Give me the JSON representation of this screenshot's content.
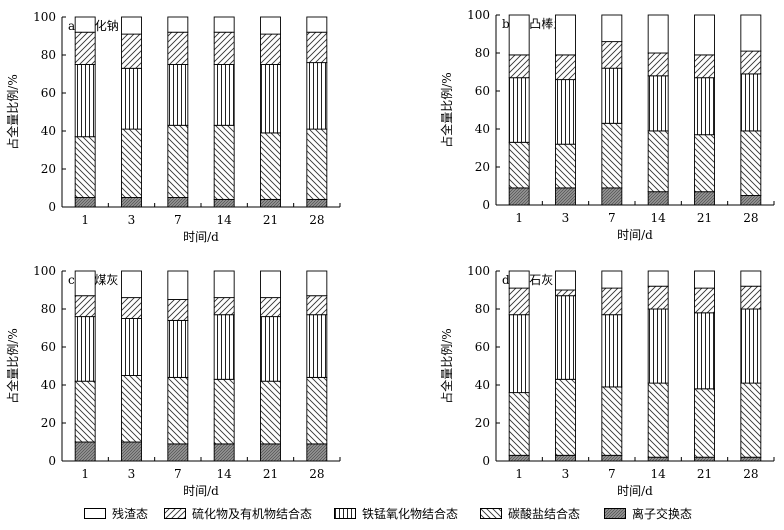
{
  "chart_data": [
    {
      "type": "bar",
      "stacked": true,
      "panel_label": "a. 硫化钠",
      "xlabel": "时间/d",
      "ylabel": "占全量比例/%",
      "ylim": [
        0,
        100
      ],
      "yticks": [
        0,
        20,
        40,
        60,
        80,
        100
      ],
      "categories": [
        "1",
        "3",
        "7",
        "14",
        "21",
        "28"
      ],
      "series": [
        {
          "name": "离子交换态",
          "values": [
            5,
            5,
            5,
            4,
            4,
            4
          ]
        },
        {
          "name": "碳酸盐结合态",
          "values": [
            32,
            36,
            38,
            39,
            35,
            37
          ]
        },
        {
          "name": "铁锰氧化物结合态",
          "values": [
            38,
            32,
            32,
            32,
            36,
            35
          ]
        },
        {
          "name": "硫化物及有机物结合态",
          "values": [
            17,
            18,
            17,
            17,
            16,
            16
          ]
        },
        {
          "name": "残渣态",
          "values": [
            8,
            9,
            8,
            8,
            9,
            8
          ]
        }
      ]
    },
    {
      "type": "bar",
      "stacked": true,
      "panel_label": "b. 凹凸棒土",
      "xlabel": "时间/d",
      "ylabel": "占全量比例/%",
      "ylim": [
        0,
        100
      ],
      "yticks": [
        0,
        20,
        40,
        60,
        80,
        100
      ],
      "categories": [
        "1",
        "3",
        "7",
        "14",
        "21",
        "28"
      ],
      "series": [
        {
          "name": "离子交换态",
          "values": [
            9,
            9,
            9,
            7,
            7,
            5
          ]
        },
        {
          "name": "碳酸盐结合态",
          "values": [
            24,
            23,
            34,
            32,
            30,
            34
          ]
        },
        {
          "name": "铁锰氧化物结合态",
          "values": [
            34,
            34,
            29,
            29,
            30,
            30
          ]
        },
        {
          "name": "硫化物及有机物结合态",
          "values": [
            12,
            13,
            14,
            12,
            12,
            12
          ]
        },
        {
          "name": "残渣态",
          "values": [
            21,
            21,
            14,
            20,
            21,
            19
          ]
        }
      ]
    },
    {
      "type": "bar",
      "stacked": true,
      "panel_label": "c. 粉煤灰",
      "xlabel": "时间/d",
      "ylabel": "占全量比例/%",
      "ylim": [
        0,
        100
      ],
      "yticks": [
        0,
        20,
        40,
        60,
        80,
        100
      ],
      "categories": [
        "1",
        "3",
        "7",
        "14",
        "21",
        "28"
      ],
      "series": [
        {
          "name": "离子交换态",
          "values": [
            10,
            10,
            9,
            9,
            9,
            9
          ]
        },
        {
          "name": "碳酸盐结合态",
          "values": [
            32,
            35,
            35,
            34,
            33,
            35
          ]
        },
        {
          "name": "铁锰氧化物结合态",
          "values": [
            34,
            30,
            30,
            34,
            34,
            33
          ]
        },
        {
          "name": "硫化物及有机物结合态",
          "values": [
            11,
            11,
            11,
            9,
            10,
            10
          ]
        },
        {
          "name": "残渣态",
          "values": [
            13,
            14,
            15,
            14,
            14,
            13
          ]
        }
      ]
    },
    {
      "type": "bar",
      "stacked": true,
      "panel_label": "d. 熟石灰",
      "xlabel": "时间/d",
      "ylabel": "占全量比例/%",
      "ylim": [
        0,
        100
      ],
      "yticks": [
        0,
        20,
        40,
        60,
        80,
        100
      ],
      "categories": [
        "1",
        "3",
        "7",
        "14",
        "21",
        "28"
      ],
      "series": [
        {
          "name": "离子交换态",
          "values": [
            3,
            3,
            3,
            2,
            2,
            2
          ]
        },
        {
          "name": "碳酸盐结合态",
          "values": [
            33,
            40,
            36,
            39,
            36,
            39
          ]
        },
        {
          "name": "铁锰氧化物结合态",
          "values": [
            41,
            44,
            38,
            39,
            40,
            39
          ]
        },
        {
          "name": "硫化物及有机物结合态",
          "values": [
            14,
            3,
            14,
            12,
            13,
            12
          ]
        },
        {
          "name": "残渣态",
          "values": [
            9,
            10,
            9,
            8,
            9,
            8
          ]
        }
      ]
    }
  ],
  "legend": {
    "items": [
      {
        "label": "残渣态",
        "pattern": "blank"
      },
      {
        "label": "硫化物及有机物结合态",
        "pattern": "hatch-fwd"
      },
      {
        "label": "铁锰氧化物结合态",
        "pattern": "vlines"
      },
      {
        "label": "碳酸盐结合态",
        "pattern": "hatch-back"
      },
      {
        "label": "离子交换态",
        "pattern": "dense"
      }
    ]
  },
  "patterns_by_series": {
    "离子交换态": "dense",
    "碳酸盐结合态": "hatch-back",
    "铁锰氧化物结合态": "vlines",
    "硫化物及有机物结合态": "hatch-fwd",
    "残渣态": "blank"
  }
}
